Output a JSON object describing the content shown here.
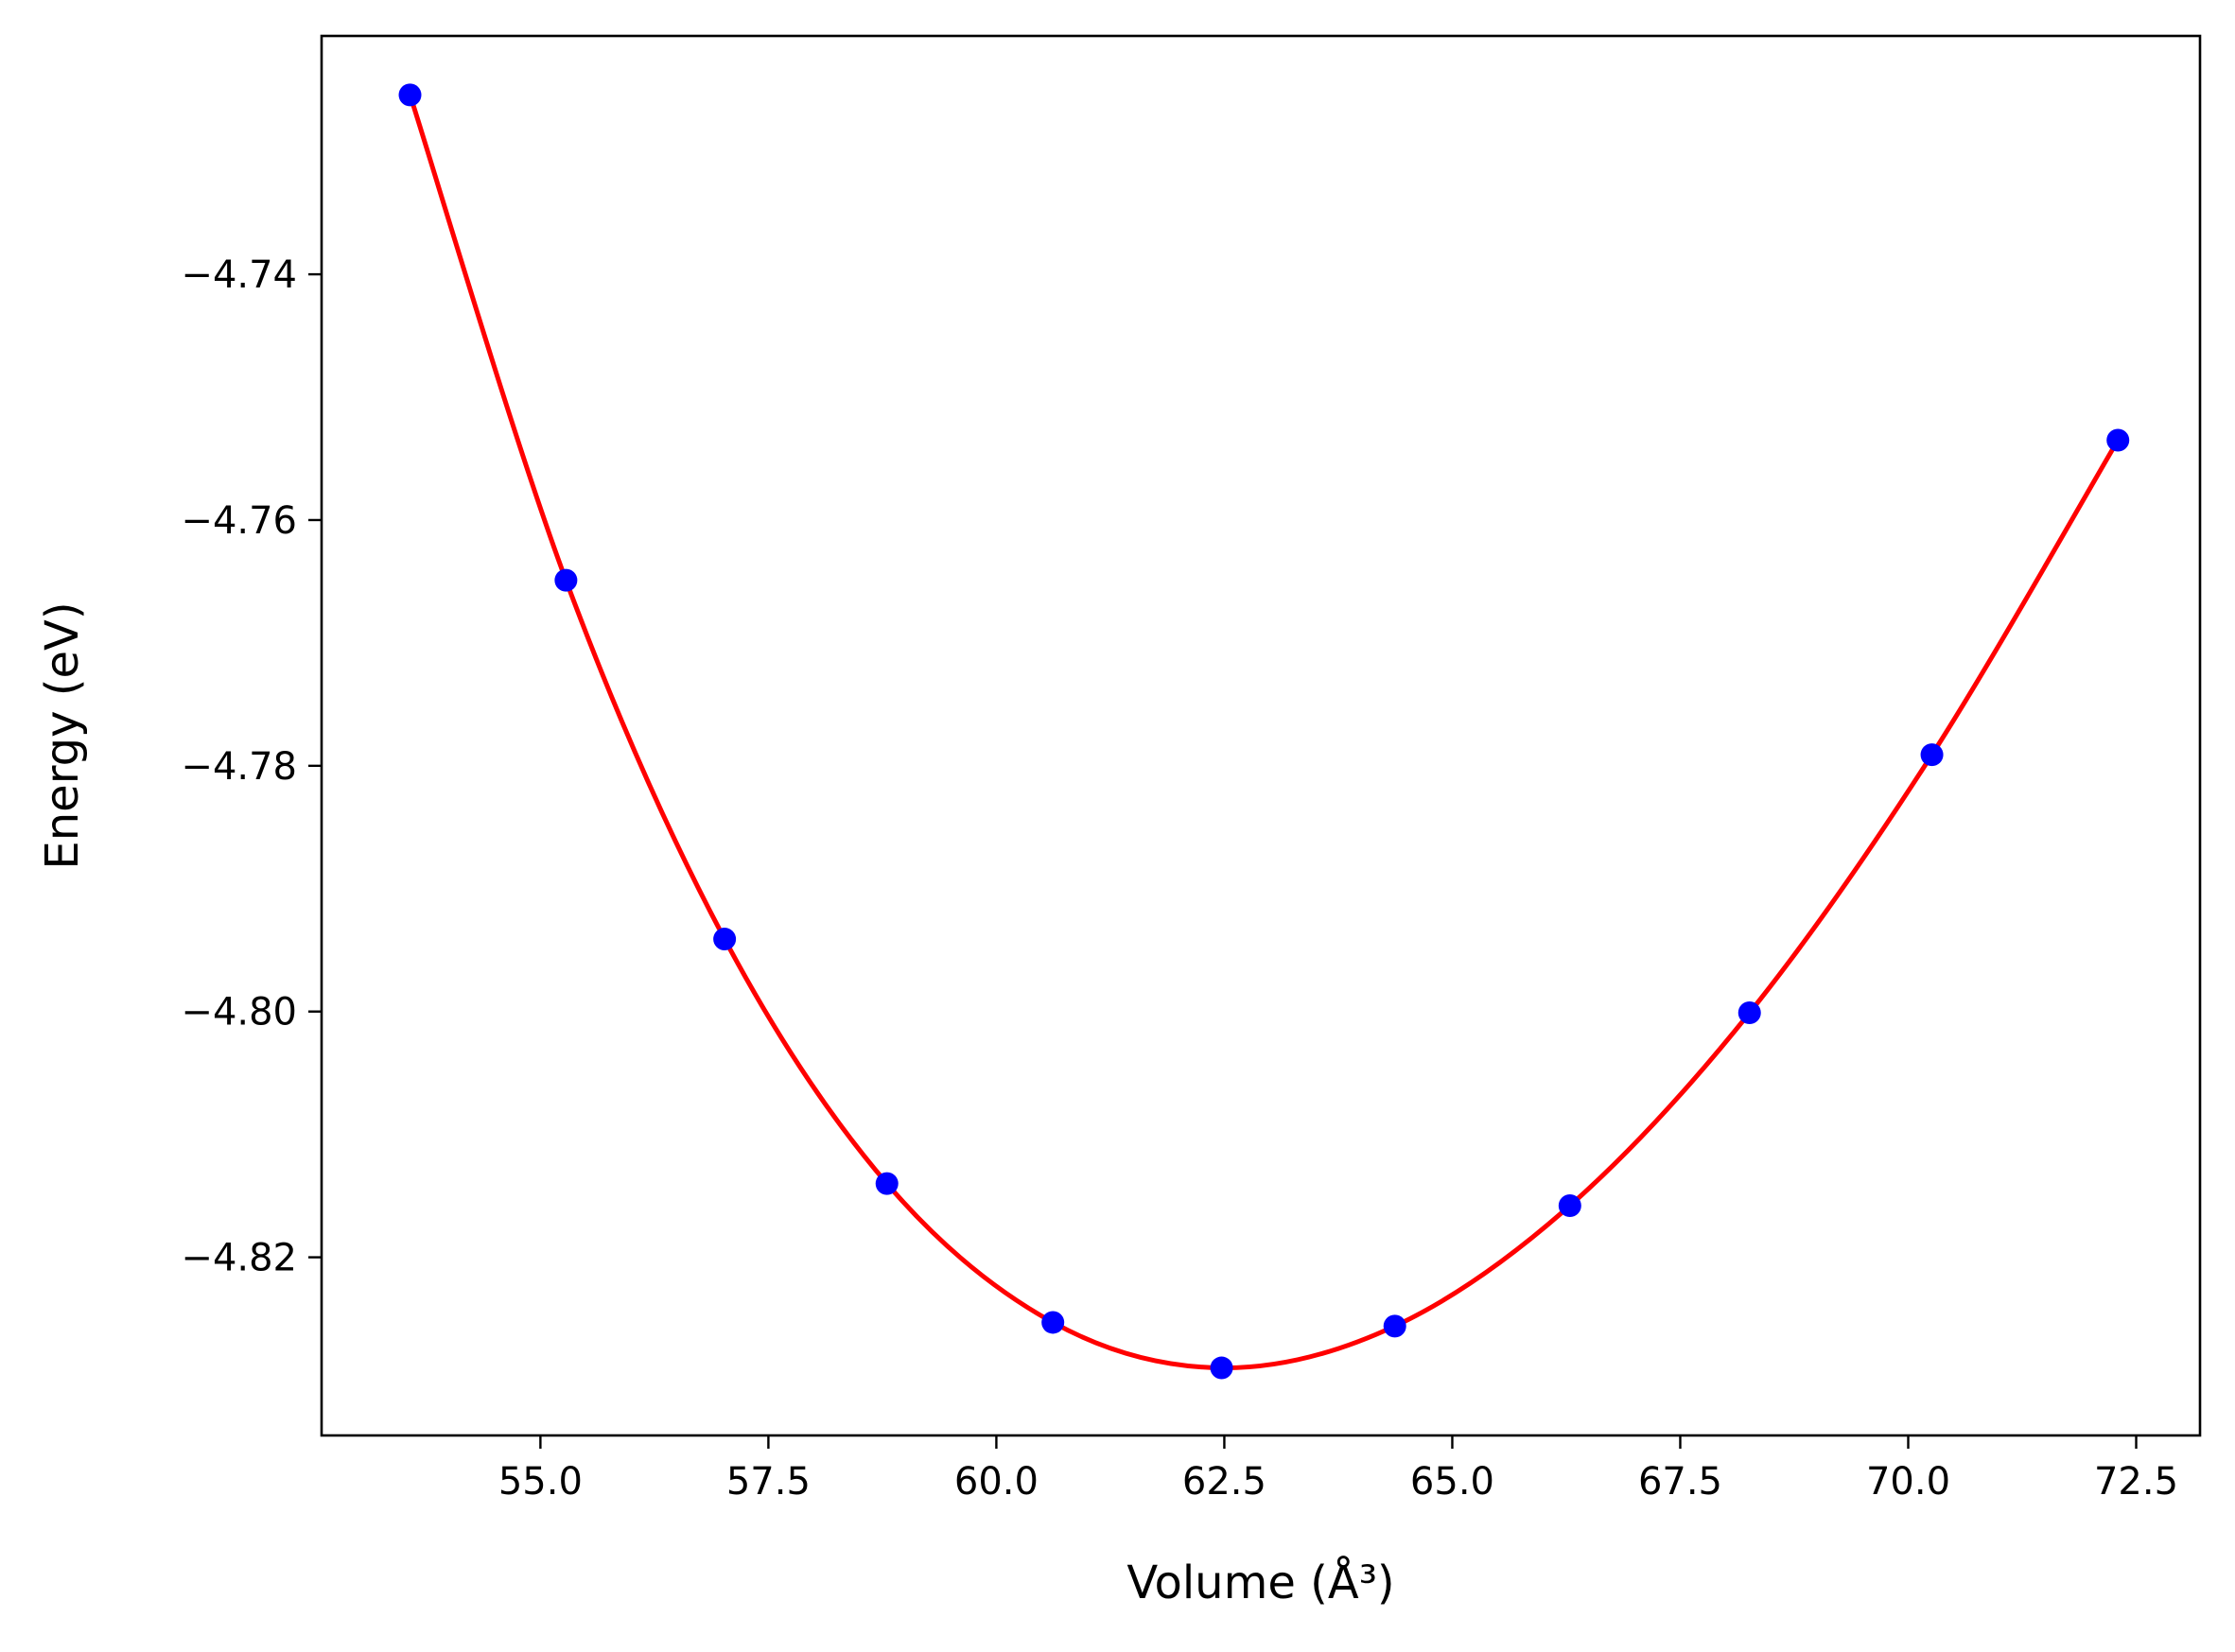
{
  "chart_data": {
    "type": "scatter",
    "title": "",
    "xlabel": "Volume (Å³)",
    "ylabel": "Energy (eV)",
    "xlim": [
      52.6,
      73.2
    ],
    "ylim": [
      -4.8345,
      -4.7206
    ],
    "xticks": [
      55.0,
      57.5,
      60.0,
      62.5,
      65.0,
      67.5,
      70.0,
      72.5
    ],
    "xtick_labels": [
      "55.0",
      "57.5",
      "60.0",
      "62.5",
      "65.0",
      "67.5",
      "70.0",
      "72.5"
    ],
    "yticks": [
      -4.74,
      -4.76,
      -4.78,
      -4.8,
      -4.82
    ],
    "ytick_labels": [
      "−4.74",
      "−4.76",
      "−4.78",
      "−4.80",
      "−4.82"
    ],
    "grid": false,
    "series": [
      {
        "kind": "points",
        "color": "#0000ff",
        "x": [
          53.57,
          55.28,
          57.02,
          58.8,
          60.62,
          62.47,
          64.37,
          66.29,
          68.26,
          70.26,
          72.3
        ],
        "y": [
          -4.7254,
          -4.7649,
          -4.7941,
          -4.814,
          -4.8253,
          -4.829,
          -4.8256,
          -4.8158,
          -4.8001,
          -4.7791,
          -4.7535
        ]
      },
      {
        "kind": "fit-line",
        "color": "#ff0000",
        "x": [
          53.57,
          55.28,
          57.02,
          58.8,
          60.62,
          62.47,
          64.37,
          66.29,
          68.26,
          70.26,
          72.3
        ],
        "y": [
          -4.7254,
          -4.7649,
          -4.7941,
          -4.814,
          -4.8253,
          -4.829,
          -4.8256,
          -4.8158,
          -4.8001,
          -4.7791,
          -4.7535
        ]
      }
    ]
  }
}
